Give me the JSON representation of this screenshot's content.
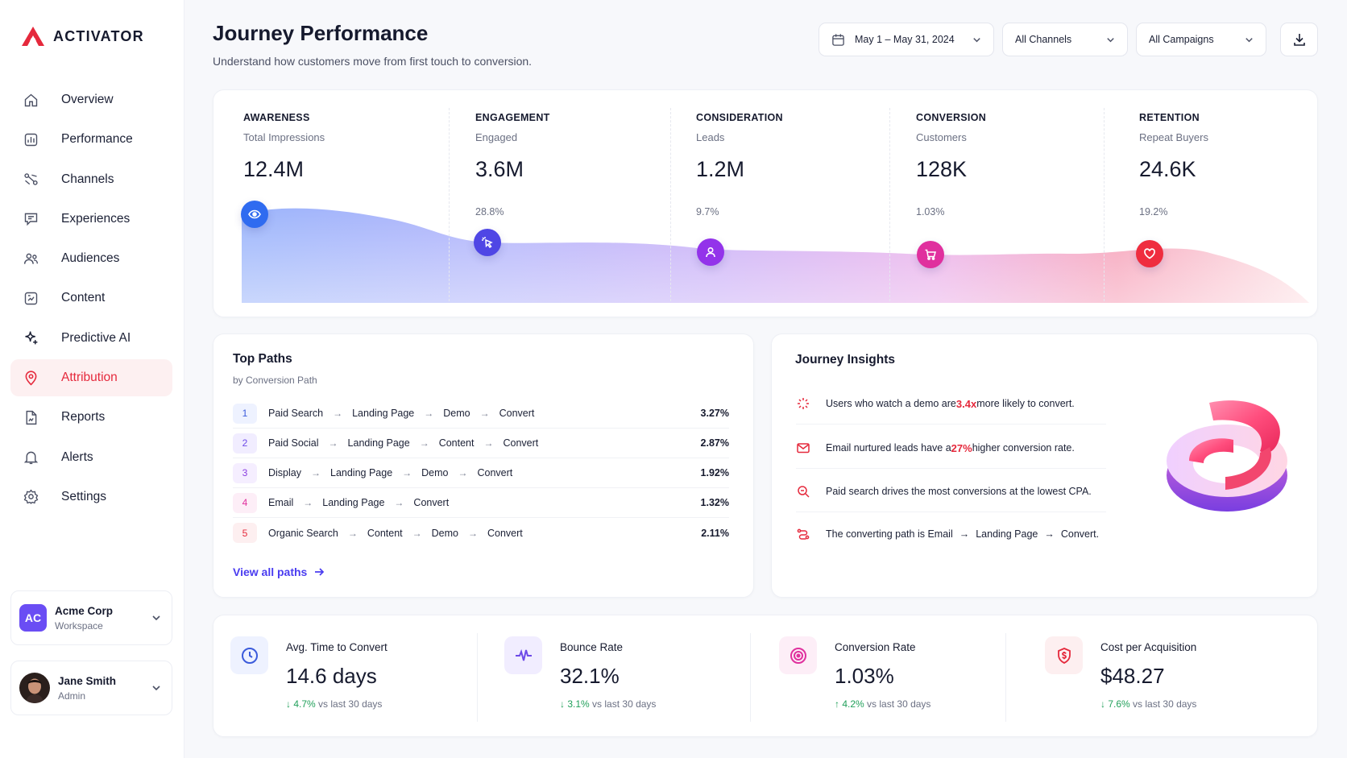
{
  "brand": {
    "name": "ACTIVATOR",
    "accent": "#e5293c"
  },
  "sidebar": {
    "items": [
      {
        "label": "Overview",
        "icon": "home-icon"
      },
      {
        "label": "Performance",
        "icon": "bar-chart-icon"
      },
      {
        "label": "Channels",
        "icon": "channels-icon"
      },
      {
        "label": "Experiences",
        "icon": "chat-icon"
      },
      {
        "label": "Audiences",
        "icon": "users-icon"
      },
      {
        "label": "Content",
        "icon": "content-icon"
      },
      {
        "label": "Predictive AI",
        "icon": "sparkle-icon"
      },
      {
        "label": "Attribution",
        "icon": "location-pin-icon",
        "active": true
      },
      {
        "label": "Reports",
        "icon": "report-icon"
      },
      {
        "label": "Alerts",
        "icon": "bell-icon"
      },
      {
        "label": "Settings",
        "icon": "gear-icon"
      }
    ],
    "workspace": {
      "initials": "AC",
      "name": "Acme Corp",
      "sub": "Workspace"
    },
    "user": {
      "name": "Jane Smith",
      "role": "Admin"
    }
  },
  "header": {
    "title": "Journey Performance",
    "subtitle": "Understand how customers move from first touch to conversion.",
    "date_range": "May 1 – May 31, 2024",
    "channels": "All Channels",
    "campaigns": "All Campaigns"
  },
  "funnel": {
    "stages": [
      {
        "title": "AWARENESS",
        "metric": "Total Impressions",
        "value": "12.4M",
        "rate": "",
        "icon": "eye-icon",
        "color": "#2f6bf0"
      },
      {
        "title": "ENGAGEMENT",
        "metric": "Engaged",
        "value": "3.6M",
        "rate": "28.8%",
        "icon": "cursor-click-icon",
        "color": "#4f46e5"
      },
      {
        "title": "CONSIDERATION",
        "metric": "Leads",
        "value": "1.2M",
        "rate": "9.7%",
        "icon": "user-icon",
        "color": "#9333ea"
      },
      {
        "title": "CONVERSION",
        "metric": "Customers",
        "value": "128K",
        "rate": "1.03%",
        "icon": "cart-icon",
        "color": "#e0309e"
      },
      {
        "title": "RETENTION",
        "metric": "Repeat Buyers",
        "value": "24.6K",
        "rate": "19.2%",
        "icon": "heart-icon",
        "color": "#ef2d3f"
      }
    ]
  },
  "top_paths": {
    "title": "Top Paths",
    "subtitle": "by Conversion Path",
    "rows": [
      {
        "num": "1",
        "steps": [
          "Paid Search",
          "Landing Page",
          "Demo",
          "Convert"
        ],
        "rate": "3.27%",
        "color": "#3b5bdb",
        "bg": "#eef2ff"
      },
      {
        "num": "2",
        "steps": [
          "Paid Social",
          "Landing Page",
          "Content",
          "Convert"
        ],
        "rate": "2.87%",
        "color": "#6d4ae8",
        "bg": "#f1edff"
      },
      {
        "num": "3",
        "steps": [
          "Display",
          "Landing Page",
          "Demo",
          "Convert"
        ],
        "rate": "1.92%",
        "color": "#8b3fe0",
        "bg": "#f5eeff"
      },
      {
        "num": "4",
        "steps": [
          "Email",
          "Landing Page",
          "Convert"
        ],
        "rate": "1.32%",
        "color": "#e0309e",
        "bg": "#fdeef7"
      },
      {
        "num": "5",
        "steps": [
          "Organic Search",
          "Content",
          "Demo",
          "Convert"
        ],
        "rate": "2.11%",
        "color": "#e5293c",
        "bg": "#fdeff0"
      }
    ],
    "view_all": "View all paths"
  },
  "insights": {
    "title": "Journey Insights",
    "items": [
      {
        "pre": "Users who watch a demo are ",
        "hl": "3.4x",
        "post": " more likely to convert.",
        "icon": "sparkle-icon"
      },
      {
        "pre": "Email nurtured leads have a ",
        "hl": "27%",
        "post": " higher conversion rate.",
        "icon": "mail-icon"
      },
      {
        "pre": "Paid search drives the most conversions at the lowest CPA.",
        "hl": "",
        "post": "",
        "icon": "search-icon"
      },
      {
        "pre": "The converting path is Email ",
        "hl": "",
        "post": "",
        "icon": "route-icon",
        "path": [
          "Landing Page",
          "Convert."
        ]
      }
    ]
  },
  "kpis": [
    {
      "label": "Avg. Time to Convert",
      "value": "14.6 days",
      "delta": "4.7%",
      "direction": "down",
      "suffix": "vs last 30 days",
      "icon": "clock-icon",
      "color": "#3b5bdb",
      "bg": "#eef2ff"
    },
    {
      "label": "Bounce Rate",
      "value": "32.1%",
      "delta": "3.1%",
      "direction": "down",
      "suffix": "vs last 30 days",
      "icon": "pulse-icon",
      "color": "#6d4ae8",
      "bg": "#f1edff"
    },
    {
      "label": "Conversion Rate",
      "value": "1.03%",
      "delta": "4.2%",
      "direction": "up",
      "suffix": "vs last 30 days",
      "icon": "target-icon",
      "color": "#e0309e",
      "bg": "#fdeef7"
    },
    {
      "label": "Cost per Acquisition",
      "value": "$48.27",
      "delta": "7.6%",
      "direction": "down",
      "suffix": "vs last 30 days",
      "icon": "dollar-shield-icon",
      "color": "#e5293c",
      "bg": "#fdeff0"
    }
  ]
}
